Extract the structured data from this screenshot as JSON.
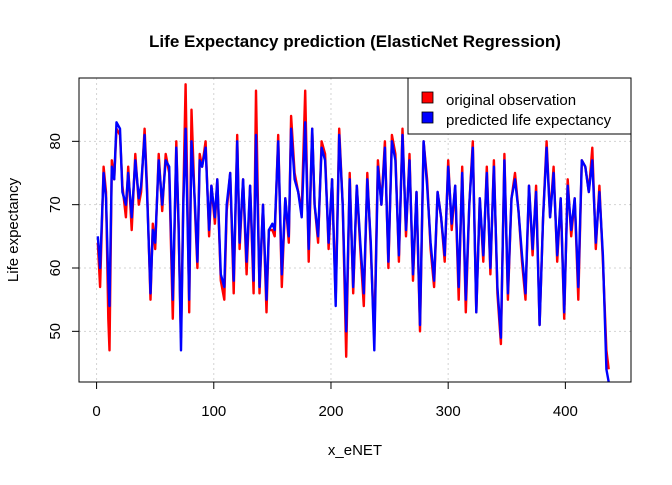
{
  "chart_data": {
    "type": "line",
    "title": "Life Expectancy prediction (ElasticNet Regression)",
    "xlabel": "x_eNET",
    "ylabel": "Life expectancy",
    "xlim": [
      -15,
      456
    ],
    "ylim": [
      42,
      90
    ],
    "x_ticks": [
      0,
      100,
      200,
      300,
      400
    ],
    "x_tick_labels": [
      "0",
      "100",
      "200",
      "300",
      "400"
    ],
    "y_ticks": [
      50,
      60,
      70,
      80
    ],
    "y_tick_labels": [
      "50",
      "60",
      "70",
      "80"
    ],
    "grid": true,
    "legend_position": "top-right",
    "series": [
      {
        "name": "original observation",
        "color": "#ff0000",
        "x": [
          1,
          3,
          6,
          8,
          10,
          11,
          13,
          15,
          17,
          20,
          22,
          25,
          27,
          30,
          33,
          36,
          38,
          41,
          43,
          46,
          48,
          50,
          53,
          56,
          59,
          62,
          65,
          68,
          70,
          72,
          74,
          76,
          79,
          81,
          84,
          86,
          88,
          90,
          93,
          96,
          98,
          101,
          103,
          106,
          109,
          111,
          114,
          117,
          120,
          122,
          125,
          128,
          131,
          134,
          136,
          139,
          142,
          145,
          147,
          150,
          152,
          155,
          158,
          161,
          164,
          166,
          169,
          172,
          175,
          178,
          181,
          184,
          186,
          189,
          192,
          195,
          198,
          201,
          204,
          207,
          210,
          213,
          216,
          219,
          222,
          225,
          228,
          231,
          234,
          237,
          240,
          243,
          246,
          249,
          252,
          255,
          258,
          261,
          264,
          267,
          270,
          273,
          276,
          279,
          282,
          285,
          288,
          291,
          294,
          297,
          300,
          303,
          306,
          309,
          312,
          315,
          318,
          321,
          324,
          327,
          330,
          333,
          336,
          339,
          342,
          345,
          348,
          351,
          354,
          357,
          360,
          363,
          366,
          369,
          372,
          375,
          378,
          381,
          384,
          387,
          390,
          393,
          396,
          399,
          402,
          405,
          408,
          411,
          414,
          417,
          420,
          423,
          426,
          429,
          432,
          435,
          437
        ],
        "values": [
          64,
          57,
          76,
          72,
          52,
          47,
          77,
          74,
          82,
          81,
          73,
          68,
          76,
          66,
          78,
          70,
          72,
          82,
          73,
          55,
          67,
          63,
          78,
          69,
          78,
          75,
          52,
          80,
          66,
          49,
          71,
          89,
          53,
          85,
          69,
          60,
          78,
          76,
          80,
          65,
          73,
          67,
          74,
          58,
          55,
          69,
          75,
          56,
          81,
          63,
          74,
          59,
          73,
          56,
          88,
          56,
          70,
          53,
          66,
          66,
          65,
          81,
          57,
          71,
          64,
          84,
          75,
          72,
          69,
          88,
          61,
          82,
          70,
          64,
          80,
          78,
          63,
          74,
          55,
          82,
          70,
          46,
          75,
          56,
          73,
          63,
          54,
          75,
          63,
          49,
          77,
          70,
          80,
          60,
          81,
          78,
          61,
          82,
          65,
          78,
          58,
          72,
          50,
          80,
          74,
          63,
          57,
          72,
          68,
          61,
          77,
          66,
          73,
          55,
          76,
          53,
          70,
          80,
          53,
          71,
          61,
          76,
          59,
          77,
          56,
          48,
          78,
          55,
          71,
          75,
          69,
          61,
          55,
          73,
          62,
          73,
          51,
          68,
          80,
          68,
          76,
          61,
          71,
          52,
          74,
          65,
          71,
          55,
          77,
          76,
          72,
          79,
          63,
          73,
          61,
          47,
          44
        ]
      },
      {
        "name": "predicted life expectancy",
        "color": "#0000ff",
        "x": [
          1,
          3,
          6,
          8,
          10,
          11,
          13,
          15,
          17,
          20,
          22,
          25,
          27,
          30,
          33,
          36,
          38,
          41,
          43,
          46,
          48,
          50,
          53,
          56,
          59,
          62,
          65,
          68,
          70,
          72,
          74,
          76,
          79,
          81,
          84,
          86,
          88,
          90,
          93,
          96,
          98,
          101,
          103,
          106,
          109,
          111,
          114,
          117,
          120,
          122,
          125,
          128,
          131,
          134,
          136,
          139,
          142,
          145,
          147,
          150,
          152,
          155,
          158,
          161,
          164,
          166,
          169,
          172,
          175,
          178,
          181,
          184,
          186,
          189,
          192,
          195,
          198,
          201,
          204,
          207,
          210,
          213,
          216,
          219,
          222,
          225,
          228,
          231,
          234,
          237,
          240,
          243,
          246,
          249,
          252,
          255,
          258,
          261,
          264,
          267,
          270,
          273,
          276,
          279,
          282,
          285,
          288,
          291,
          294,
          297,
          300,
          303,
          306,
          309,
          312,
          315,
          318,
          321,
          324,
          327,
          330,
          333,
          336,
          339,
          342,
          345,
          348,
          351,
          354,
          357,
          360,
          363,
          366,
          369,
          372,
          375,
          378,
          381,
          384,
          387,
          390,
          393,
          396,
          399,
          402,
          405,
          408,
          411,
          414,
          417,
          420,
          423,
          426,
          429,
          432,
          435,
          437
        ],
        "values": [
          65,
          60,
          75,
          71,
          58,
          54,
          76,
          74,
          83,
          82,
          72,
          70,
          75,
          68,
          77,
          71,
          73,
          81,
          72,
          56,
          66,
          64,
          77,
          70,
          77,
          76,
          55,
          79,
          67,
          47,
          70,
          82,
          55,
          80,
          70,
          61,
          77,
          76,
          79,
          66,
          73,
          68,
          74,
          59,
          57,
          70,
          75,
          58,
          80,
          64,
          74,
          61,
          73,
          58,
          81,
          57,
          70,
          55,
          66,
          67,
          66,
          80,
          59,
          71,
          65,
          82,
          74,
          72,
          68,
          83,
          63,
          82,
          70,
          65,
          79,
          77,
          64,
          74,
          54,
          81,
          70,
          50,
          74,
          57,
          73,
          64,
          56,
          74,
          64,
          47,
          76,
          70,
          79,
          61,
          80,
          77,
          62,
          81,
          66,
          77,
          59,
          72,
          51,
          80,
          73,
          64,
          58,
          72,
          68,
          62,
          76,
          67,
          73,
          57,
          75,
          55,
          70,
          79,
          53,
          71,
          62,
          75,
          60,
          76,
          57,
          49,
          77,
          56,
          71,
          74,
          69,
          62,
          56,
          73,
          63,
          72,
          51,
          68,
          79,
          68,
          75,
          62,
          71,
          53,
          73,
          66,
          71,
          57,
          77,
          76,
          72,
          77,
          64,
          72,
          62,
          44,
          42
        ]
      }
    ]
  }
}
